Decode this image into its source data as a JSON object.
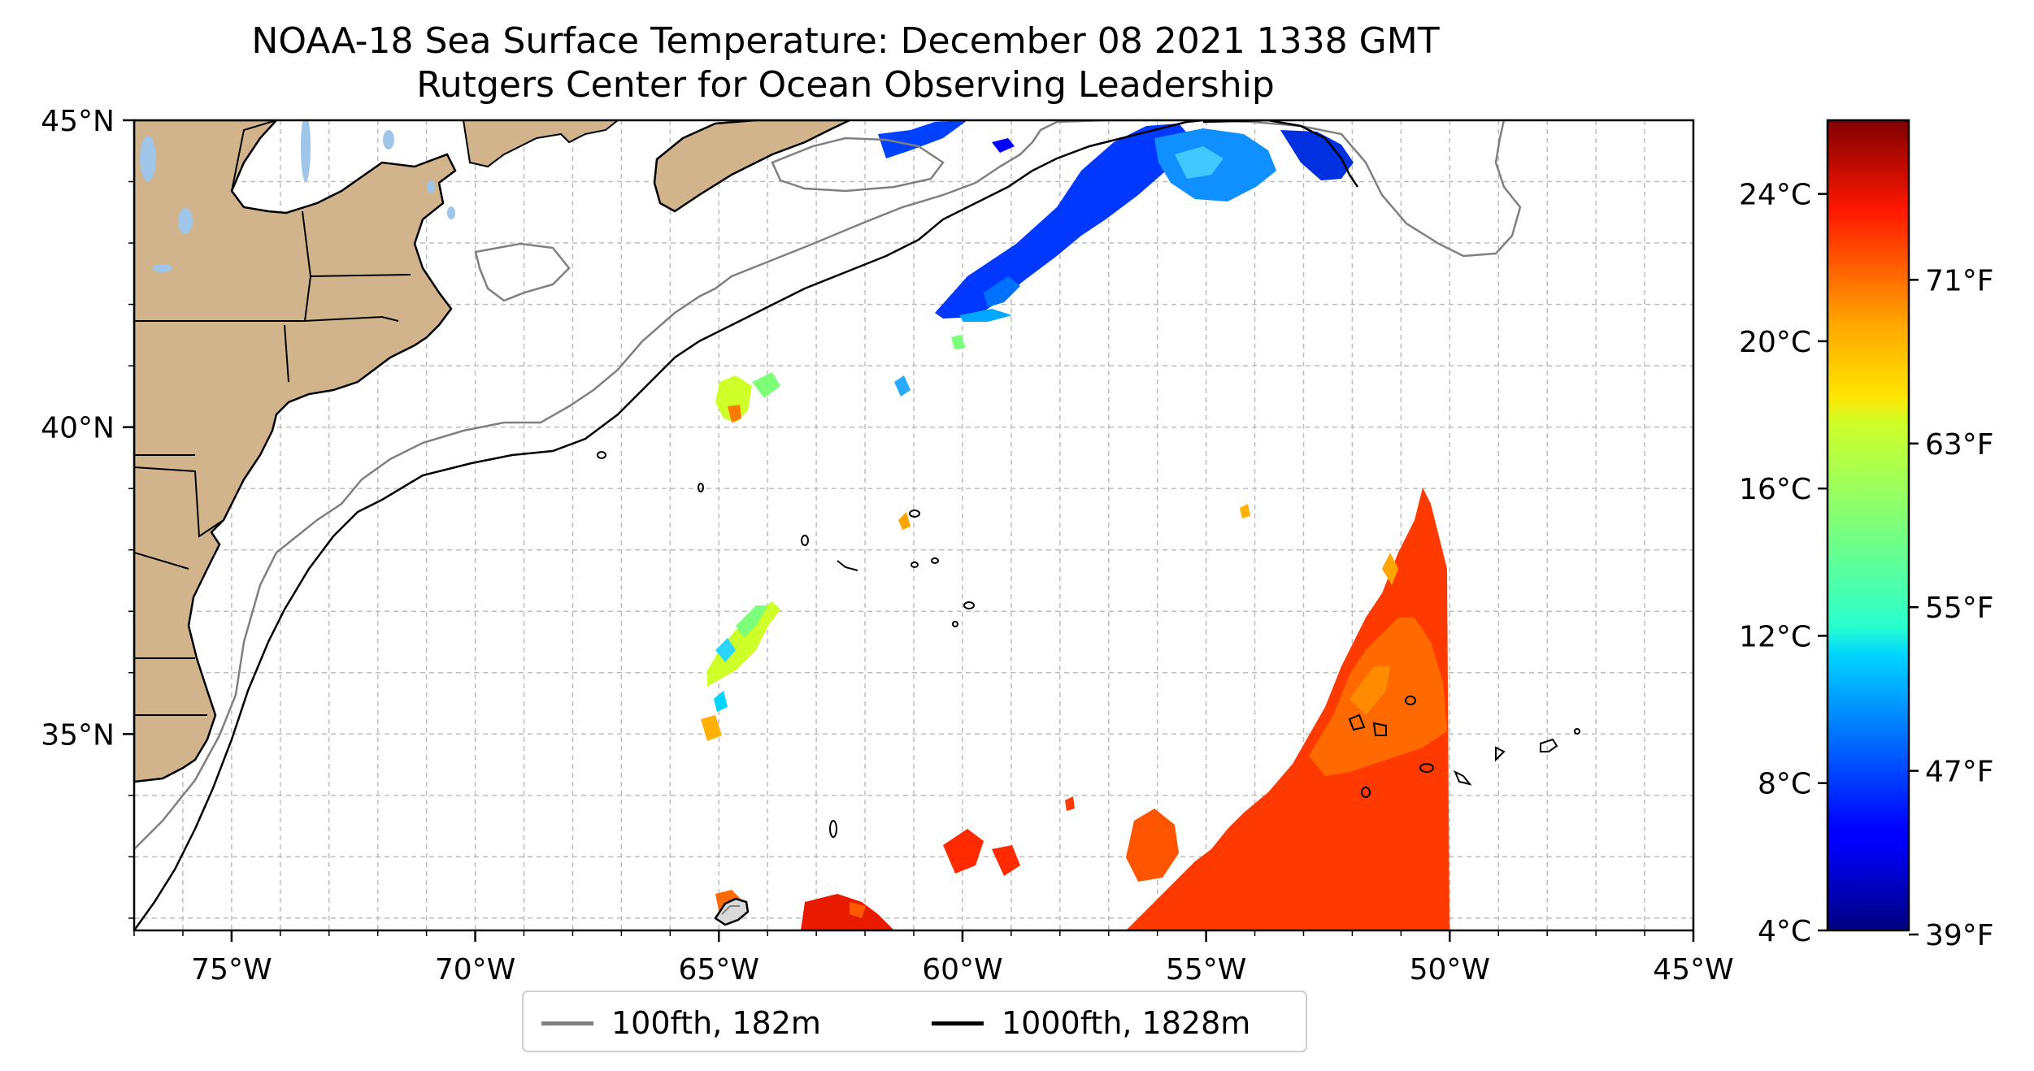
{
  "title": "NOAA-18 Sea Surface Temperature: December 08 2021 1338 GMT",
  "subtitle": "Rutgers Center for Ocean Observing Leadership",
  "map": {
    "lon_range": [
      -77,
      -45
    ],
    "lat_range": [
      31.8,
      45
    ],
    "lon_ticks": [
      -75,
      -70,
      -65,
      -60,
      -55,
      -50,
      -45
    ],
    "lon_tick_labels": [
      "75°W",
      "70°W",
      "65°W",
      "60°W",
      "55°W",
      "50°W",
      "45°W"
    ],
    "lat_ticks": [
      35,
      40,
      45
    ],
    "lat_tick_labels": [
      "35°N",
      "40°N",
      "45°N"
    ],
    "gridlines": true,
    "land_color": "#d2b48c",
    "lake_color": "#9fc5e8",
    "ocean_color": "#ffffff"
  },
  "colorbar": {
    "colormap": "jet",
    "range_c": [
      4,
      26
    ],
    "celsius_ticks": [
      4,
      8,
      12,
      16,
      20,
      24
    ],
    "celsius_labels": [
      "4°C",
      "8°C",
      "12°C",
      "16°C",
      "20°C",
      "24°C"
    ],
    "fahrenheit_ticks": [
      39,
      47,
      55,
      63,
      71
    ],
    "fahrenheit_labels": [
      "39°F",
      "47°F",
      "55°F",
      "63°F",
      "71°F"
    ]
  },
  "legend": {
    "items": [
      {
        "label": "100fth, 182m",
        "color": "#808080"
      },
      {
        "label": "1000fth, 1828m",
        "color": "#000000"
      }
    ]
  }
}
